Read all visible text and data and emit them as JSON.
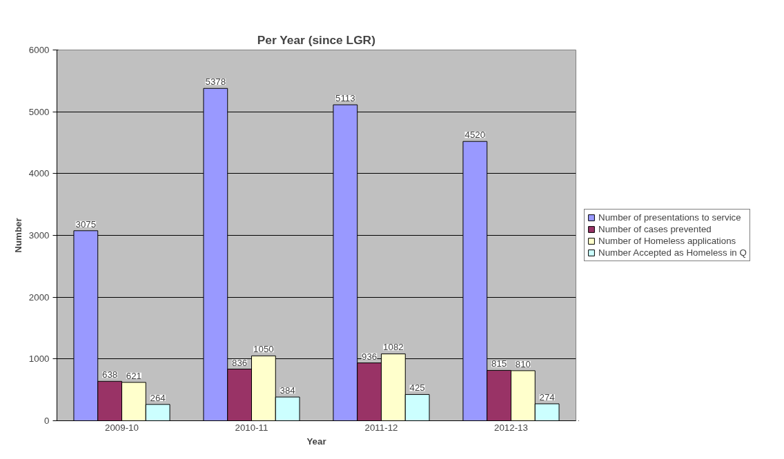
{
  "chart_data": {
    "type": "bar",
    "title": "Per Year (since LGR)",
    "xlabel": "Year",
    "ylabel": "Number",
    "categories": [
      "2009-10",
      "2010-11",
      "2011-12",
      "2012-13"
    ],
    "series": [
      {
        "name": "Number of presentations to service",
        "color": "#9999ff",
        "values": [
          3075,
          5378,
          5113,
          4520
        ]
      },
      {
        "name": "Number of cases prevented",
        "color": "#993366",
        "values": [
          638,
          836,
          936,
          815
        ]
      },
      {
        "name": "Number of Homeless applications",
        "color": "#ffffcc",
        "values": [
          621,
          1050,
          1082,
          810
        ]
      },
      {
        "name": "Number Accepted as Homeless in Q",
        "color": "#ccffff",
        "values": [
          264,
          384,
          425,
          274
        ]
      }
    ],
    "ylim": [
      0,
      6000
    ],
    "yticks": [
      0,
      1000,
      2000,
      3000,
      4000,
      5000,
      6000
    ],
    "grid": "y",
    "legend": "right",
    "data_labels": true
  }
}
